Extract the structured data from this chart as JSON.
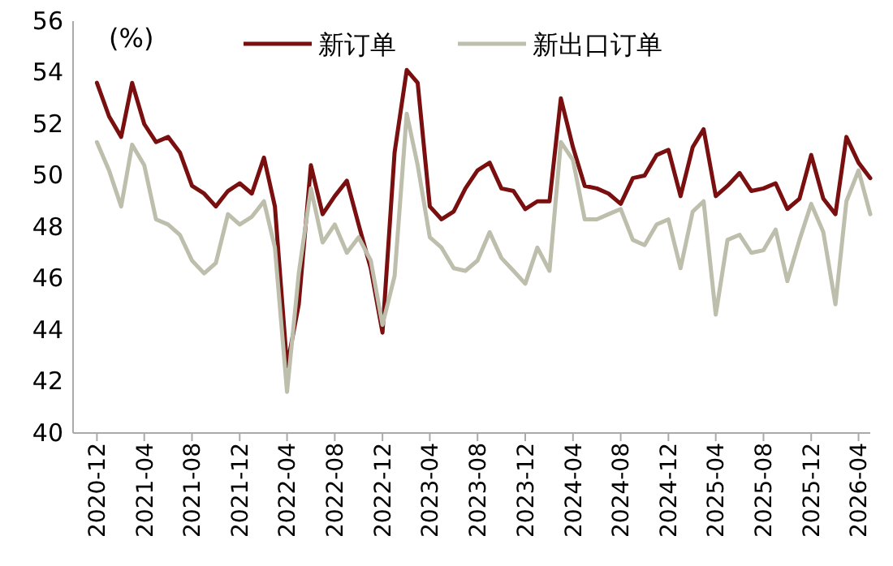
{
  "chart_data": {
    "type": "line",
    "annotations": [
      "(%)"
    ],
    "x": [
      "2020-12",
      "2021-01",
      "2021-02",
      "2021-03",
      "2021-04",
      "2021-05",
      "2021-06",
      "2021-07",
      "2021-08",
      "2021-09",
      "2021-10",
      "2021-11",
      "2021-12",
      "2022-01",
      "2022-02",
      "2022-03",
      "2022-04",
      "2022-05",
      "2022-06",
      "2022-07",
      "2022-08",
      "2022-09",
      "2022-10",
      "2022-11",
      "2022-12",
      "2023-01",
      "2023-02",
      "2023-03",
      "2023-04",
      "2023-05",
      "2023-06",
      "2023-07",
      "2023-08",
      "2023-09",
      "2023-10",
      "2023-11",
      "2023-12",
      "2024-01",
      "2024-02",
      "2024-03",
      "2024-04",
      "2024-05",
      "2024-06",
      "2024-07",
      "2024-08",
      "2024-09",
      "2024-10",
      "2024-11",
      "2024-12",
      "2025-01",
      "2025-02",
      "2025-03",
      "2025-04",
      "2025-05",
      "2025-06",
      "2025-07",
      "2025-08",
      "2025-09",
      "2025-10",
      "2025-11",
      "2025-12",
      "2026-01",
      "2026-02",
      "2026-03",
      "2026-04",
      "2026-05"
    ],
    "series": [
      {
        "name": "新订单",
        "color": "#7a0f10",
        "values": [
          53.6,
          52.3,
          51.5,
          53.6,
          52.0,
          51.3,
          51.5,
          50.9,
          49.6,
          49.3,
          48.8,
          49.4,
          49.7,
          49.3,
          50.7,
          48.8,
          42.6,
          45.0,
          50.4,
          48.5,
          49.2,
          49.8,
          48.1,
          46.4,
          43.9,
          50.9,
          54.1,
          53.6,
          48.8,
          48.3,
          48.6,
          49.5,
          50.2,
          50.5,
          49.5,
          49.4,
          48.7,
          49.0,
          49.0,
          53.0,
          51.1,
          49.6,
          49.5,
          49.3,
          48.9,
          49.9,
          50.0,
          50.8,
          51.0,
          49.2,
          51.1,
          51.8,
          49.2,
          49.6,
          50.1,
          49.4,
          49.5,
          49.7,
          48.7,
          49.1,
          50.8,
          49.1,
          48.5,
          51.5,
          50.5,
          49.9
        ]
      },
      {
        "name": "新出口订单",
        "color": "#bdbeac",
        "values": [
          51.3,
          50.2,
          48.8,
          51.2,
          50.4,
          48.3,
          48.1,
          47.7,
          46.7,
          46.2,
          46.6,
          48.5,
          48.1,
          48.4,
          49.0,
          47.2,
          41.6,
          46.2,
          49.5,
          47.4,
          48.1,
          47.0,
          47.6,
          46.7,
          44.2,
          46.1,
          52.4,
          50.4,
          47.6,
          47.2,
          46.4,
          46.3,
          46.7,
          47.8,
          46.8,
          46.3,
          45.8,
          47.2,
          46.3,
          51.3,
          50.6,
          48.3,
          48.3,
          48.5,
          48.7,
          47.5,
          47.3,
          48.1,
          48.3,
          46.4,
          48.6,
          49.0,
          44.6,
          47.5,
          47.7,
          47.0,
          47.1,
          47.9,
          45.9,
          47.5,
          48.9,
          47.8,
          45.0,
          49.0,
          50.2,
          48.5
        ]
      }
    ],
    "xlim": [
      "2020-10",
      "2026-05"
    ],
    "xticks": [
      {
        "value": "2020-12",
        "label": "2020-12"
      },
      {
        "value": "2021-04",
        "label": "2021-04"
      },
      {
        "value": "2021-08",
        "label": "2021-08"
      },
      {
        "value": "2021-12",
        "label": "2021-12"
      },
      {
        "value": "2022-04",
        "label": "2022-04"
      },
      {
        "value": "2022-08",
        "label": "2022-08"
      },
      {
        "value": "2022-12",
        "label": "2022-12"
      },
      {
        "value": "2023-04",
        "label": "2023-04"
      },
      {
        "value": "2023-08",
        "label": "2023-08"
      },
      {
        "value": "2023-12",
        "label": "2023-12"
      },
      {
        "value": "2024-04",
        "label": "2024-04"
      },
      {
        "value": "2024-08",
        "label": "2024-08"
      },
      {
        "value": "2024-12",
        "label": "2024-12"
      },
      {
        "value": "2025-04",
        "label": "2025-04"
      },
      {
        "value": "2025-08",
        "label": "2025-08"
      },
      {
        "value": "2025-12",
        "label": "2025-12"
      },
      {
        "value": "2026-04",
        "label": "2026-04"
      }
    ],
    "ylim": [
      40,
      56
    ],
    "yticks": [
      40,
      42,
      44,
      46,
      48,
      50,
      52,
      54,
      56
    ],
    "grid": false,
    "legend": "top",
    "line_style": "solid",
    "marker": "none"
  }
}
